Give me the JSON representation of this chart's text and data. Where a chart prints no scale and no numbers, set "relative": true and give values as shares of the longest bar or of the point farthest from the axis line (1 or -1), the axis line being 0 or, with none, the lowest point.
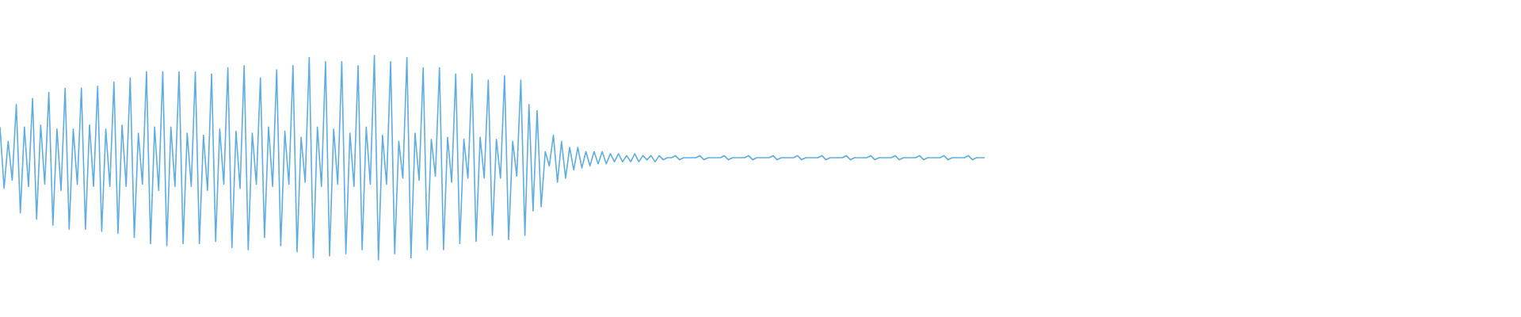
{
  "chart_data": {
    "type": "line",
    "relative": true,
    "color": "#5dade2",
    "categories": [
      null,
      null,
      null,
      null,
      null,
      null,
      null,
      null,
      null,
      null,
      null,
      null,
      null,
      null,
      null,
      null,
      null,
      null,
      null,
      null,
      null,
      null,
      null,
      null,
      null,
      null,
      null,
      null,
      null,
      null,
      null,
      null,
      null,
      null,
      null,
      null,
      null,
      null,
      null,
      null,
      null,
      null,
      null,
      null,
      null,
      null,
      null,
      null,
      null,
      null,
      null,
      null,
      null,
      null,
      null,
      null,
      null,
      null,
      null,
      null,
      null,
      null,
      null,
      null,
      null,
      null,
      null,
      null,
      null,
      null,
      null,
      null,
      null,
      null,
      null,
      null,
      null,
      null,
      null,
      null,
      null,
      null,
      null,
      null,
      null,
      null,
      null,
      null,
      null,
      null,
      null,
      null,
      null,
      null,
      null,
      null,
      null,
      null,
      null,
      null,
      null,
      null,
      null,
      null,
      null,
      null,
      null,
      null,
      null,
      null,
      null,
      null,
      null,
      null,
      null,
      null,
      null,
      null,
      null,
      null,
      null,
      null,
      null,
      null,
      null,
      null,
      null,
      null,
      null,
      null,
      null,
      null,
      null,
      null,
      null,
      null,
      null,
      null,
      null,
      null,
      null,
      null,
      null,
      null,
      null,
      null,
      null,
      null,
      null,
      null,
      null,
      null,
      null,
      null,
      null,
      null,
      null,
      null,
      null,
      null,
      null,
      null,
      null,
      null,
      null,
      null,
      null,
      null,
      null,
      null,
      null,
      null,
      null,
      null,
      null,
      null,
      null,
      null,
      null,
      null,
      null,
      null,
      null,
      null,
      null,
      null,
      null,
      null,
      null,
      null,
      null,
      null,
      null,
      null,
      null,
      null,
      null,
      null,
      null,
      null,
      null,
      null,
      null,
      null,
      null,
      null,
      null,
      null,
      null,
      null,
      null,
      null,
      null,
      null,
      null,
      null,
      null,
      null,
      null,
      null,
      null,
      null,
      null,
      null,
      null,
      null,
      null,
      null,
      null,
      null,
      null,
      null,
      null,
      null,
      null,
      null,
      null,
      null,
      null,
      null,
      null,
      null,
      null
    ],
    "values": [
      0.65,
      0.35,
      0.58,
      0.39,
      0.76,
      0.23,
      0.65,
      0.36,
      0.79,
      0.2,
      0.66,
      0.37,
      0.82,
      0.17,
      0.64,
      0.34,
      0.84,
      0.15,
      0.64,
      0.37,
      0.84,
      0.15,
      0.66,
      0.36,
      0.85,
      0.14,
      0.64,
      0.36,
      0.87,
      0.13,
      0.66,
      0.36,
      0.89,
      0.11,
      0.62,
      0.37,
      0.92,
      0.08,
      0.65,
      0.34,
      0.92,
      0.07,
      0.65,
      0.36,
      0.92,
      0.08,
      0.62,
      0.36,
      0.92,
      0.08,
      0.61,
      0.34,
      0.91,
      0.09,
      0.64,
      0.37,
      0.94,
      0.06,
      0.63,
      0.35,
      0.95,
      0.05,
      0.62,
      0.37,
      0.89,
      0.11,
      0.65,
      0.36,
      0.93,
      0.07,
      0.63,
      0.37,
      0.95,
      0.04,
      0.6,
      0.38,
      0.99,
      0.01,
      0.65,
      0.36,
      0.97,
      0.02,
      0.64,
      0.37,
      0.97,
      0.03,
      0.62,
      0.36,
      0.95,
      0.05,
      0.65,
      0.37,
      1,
      0,
      0.61,
      0.37,
      0.97,
      0.03,
      0.58,
      0.4,
      0.99,
      0.01,
      0.62,
      0.39,
      0.94,
      0.05,
      0.59,
      0.41,
      0.94,
      0.05,
      0.6,
      0.38,
      0.91,
      0.08,
      0.59,
      0.4,
      0.91,
      0.09,
      0.6,
      0.4,
      0.88,
      0.12,
      0.59,
      0.4,
      0.9,
      0.1,
      0.58,
      0.41,
      0.88,
      0.12,
      0.76,
      0.24,
      0.73,
      0.26,
      0.53,
      0.46,
      0.61,
      0.38,
      0.58,
      0.4,
      0.55,
      0.44,
      0.55,
      0.45,
      0.53,
      0.46,
      0.53,
      0.47,
      0.53,
      0.47,
      0.52,
      0.48,
      0.52,
      0.48,
      0.51,
      0.48,
      0.52,
      0.48,
      0.51,
      0.49,
      0.51,
      0.48,
      0.51,
      0.49,
      0.5,
      0.5,
      0.51,
      0.49,
      0.5,
      0.5,
      0.5,
      0.5,
      0.51,
      0.49,
      0.5,
      0.5,
      0.5,
      0.5,
      0.51,
      0.49,
      0.5,
      0.5,
      0.5,
      0.5,
      0.51,
      0.49,
      0.5,
      0.5,
      0.5,
      0.5,
      0.51,
      0.49,
      0.5,
      0.5,
      0.5,
      0.5,
      0.51,
      0.49,
      0.5,
      0.5,
      0.5,
      0.5,
      0.51,
      0.49,
      0.5,
      0.5,
      0.5,
      0.5,
      0.51,
      0.49,
      0.5,
      0.5,
      0.5,
      0.5,
      0.51,
      0.49,
      0.5,
      0.5,
      0.5,
      0.5,
      0.51,
      0.49,
      0.5,
      0.5,
      0.5,
      0.5,
      0.51,
      0.49,
      0.5,
      0.5,
      0.5,
      0.5,
      0.51,
      0.49,
      0.5,
      0.5,
      0.5,
      0.5,
      0.51,
      0.49,
      0.5,
      0.5,
      0.5
    ]
  }
}
